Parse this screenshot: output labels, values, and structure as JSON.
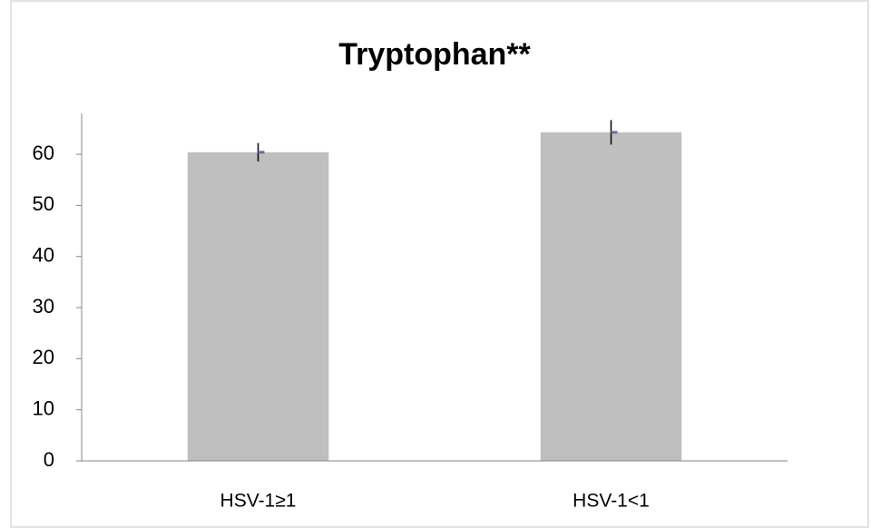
{
  "chart_data": {
    "type": "bar",
    "title": "Tryptophan**",
    "categories": [
      "HSV-1≥1",
      "HSV-1<1"
    ],
    "values": [
      60.4,
      64.3
    ],
    "errors": [
      1.8,
      2.4
    ],
    "color": "#bfbfbf",
    "error_color": "#000000",
    "marker_color": "#8064a2",
    "ylim": [
      0,
      68
    ],
    "yticks": [
      0,
      10,
      20,
      30,
      40,
      50,
      60
    ],
    "grid": false
  }
}
